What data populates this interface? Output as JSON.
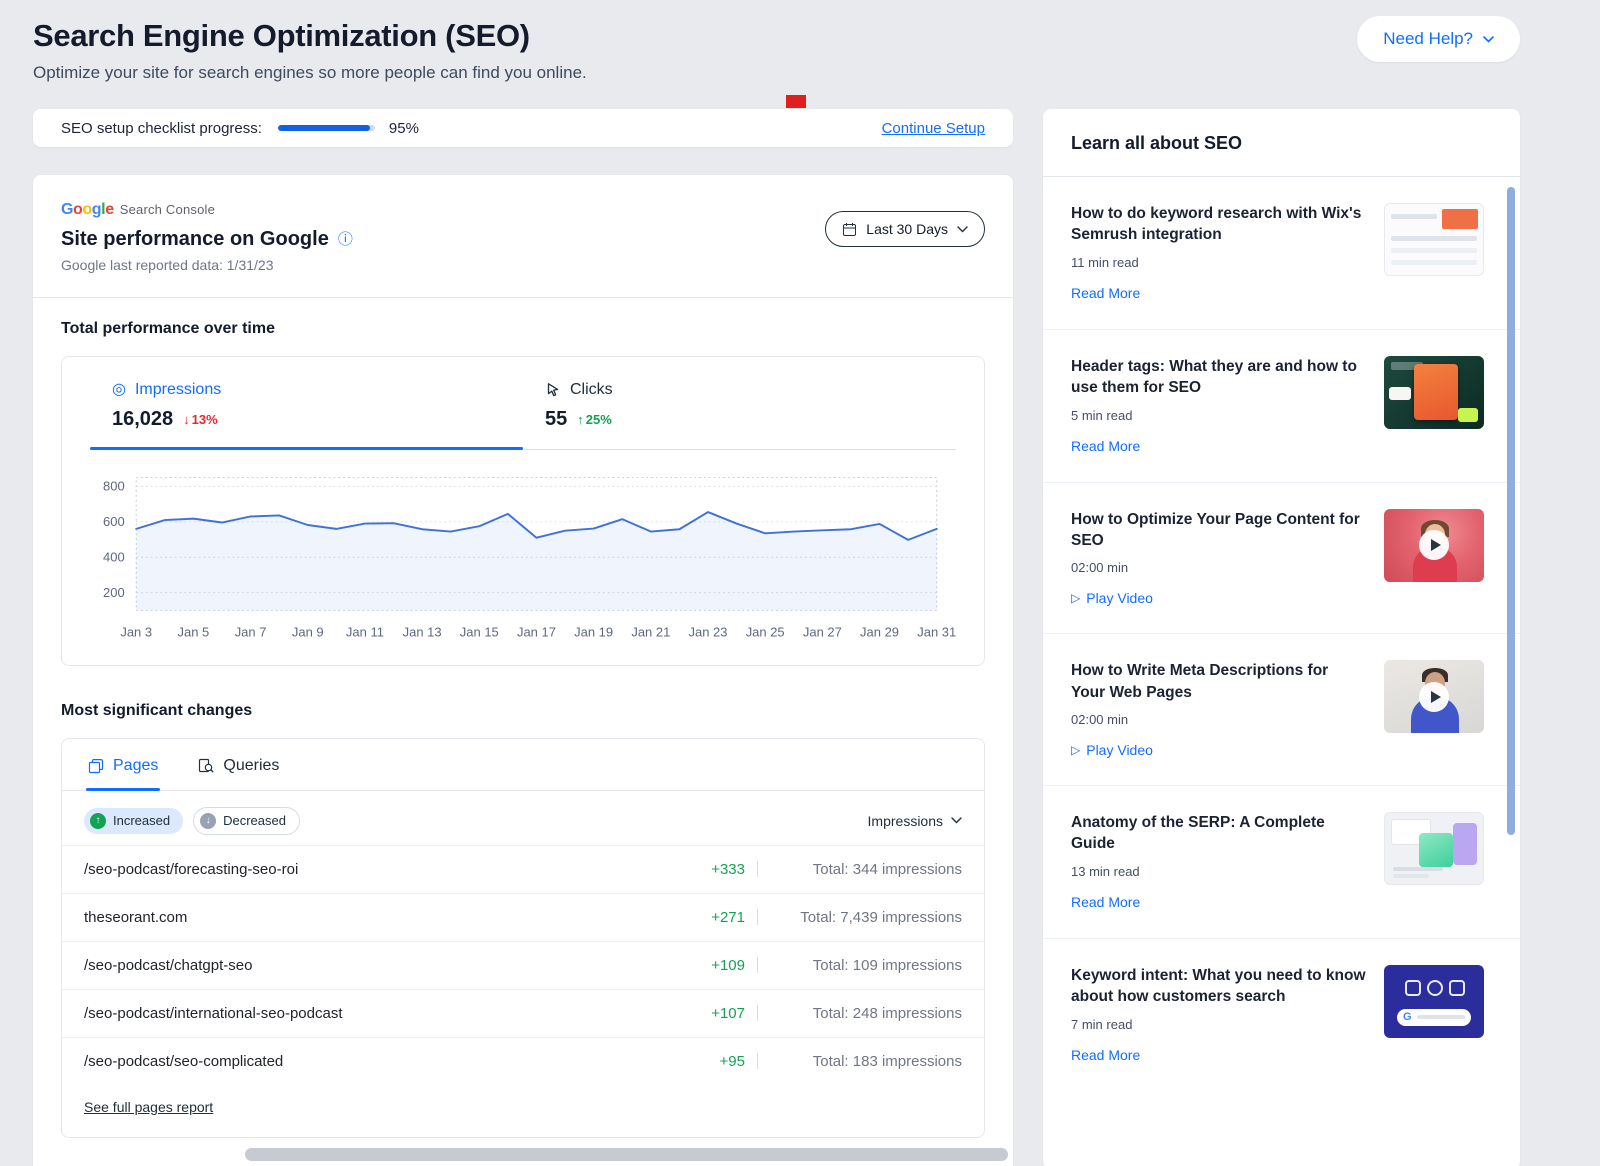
{
  "page": {
    "title": "Search Engine Optimization (SEO)",
    "subtitle": "Optimize your site for search engines so more people can find you online.",
    "help_button": "Need Help?"
  },
  "checklist": {
    "label": "SEO setup checklist progress:",
    "percent": "95%",
    "progress_value": 95,
    "continue_link": "Continue Setup"
  },
  "console": {
    "logo_word": "Google",
    "logo_suffix": "Search Console",
    "title": "Site performance on Google",
    "last_reported": "Google last reported data: 1/31/23",
    "date_range": "Last 30 Days"
  },
  "performance": {
    "heading": "Total performance over time",
    "impressions": {
      "label": "Impressions",
      "value": "16,028",
      "change": "13%",
      "direction": "down"
    },
    "clicks": {
      "label": "Clicks",
      "value": "55",
      "change": "25%",
      "direction": "up"
    }
  },
  "chart_data": {
    "type": "line",
    "title": "Impressions over time (Last 30 Days)",
    "x": [
      "Jan 3",
      "Jan 4",
      "Jan 5",
      "Jan 6",
      "Jan 7",
      "Jan 8",
      "Jan 9",
      "Jan 10",
      "Jan 11",
      "Jan 12",
      "Jan 13",
      "Jan 14",
      "Jan 15",
      "Jan 16",
      "Jan 17",
      "Jan 18",
      "Jan 19",
      "Jan 20",
      "Jan 21",
      "Jan 22",
      "Jan 23",
      "Jan 24",
      "Jan 25",
      "Jan 26",
      "Jan 27",
      "Jan 28",
      "Jan 29",
      "Jan 30",
      "Jan 31"
    ],
    "values": [
      560,
      610,
      618,
      596,
      630,
      636,
      582,
      560,
      590,
      592,
      558,
      545,
      575,
      645,
      510,
      550,
      562,
      615,
      545,
      558,
      655,
      590,
      535,
      545,
      552,
      558,
      588,
      498,
      560
    ],
    "x_tick_labels": [
      "Jan 3",
      "Jan 5",
      "Jan 7",
      "Jan 9",
      "Jan 11",
      "Jan 13",
      "Jan 15",
      "Jan 17",
      "Jan 19",
      "Jan 21",
      "Jan 23",
      "Jan 25",
      "Jan 27",
      "Jan 29",
      "Jan 31"
    ],
    "y_ticks": [
      200,
      400,
      600,
      800
    ],
    "ylim": [
      100,
      850
    ],
    "grid": true,
    "legend": "none",
    "series_color": "#3f72d8"
  },
  "changes": {
    "heading": "Most significant changes",
    "tabs": {
      "pages": "Pages",
      "queries": "Queries"
    },
    "filters": {
      "increased": "Increased",
      "decreased": "Decreased"
    },
    "sort_label": "Impressions",
    "rows": [
      {
        "page": "/seo-podcast/forecasting-seo-roi",
        "change": "+333",
        "total": "Total: 344 impressions"
      },
      {
        "page": "theseorant.com",
        "change": "+271",
        "total": "Total: 7,439 impressions"
      },
      {
        "page": "/seo-podcast/chatgpt-seo",
        "change": "+109",
        "total": "Total: 109 impressions"
      },
      {
        "page": "/seo-podcast/international-seo-podcast",
        "change": "+107",
        "total": "Total: 248 impressions"
      },
      {
        "page": "/seo-podcast/seo-complicated",
        "change": "+95",
        "total": "Total: 183 impressions"
      }
    ],
    "footer_link": "See full pages report"
  },
  "learn": {
    "heading": "Learn all about SEO",
    "articles": [
      {
        "title": "How to do keyword research with Wix's Semrush integration",
        "meta": "11 min read",
        "action": "Read More",
        "type": "read"
      },
      {
        "title": "Header tags: What they are and how to use them for SEO",
        "meta": "5 min read",
        "action": "Read More",
        "type": "read"
      },
      {
        "title": "How to Optimize Your Page Content for SEO",
        "meta": "02:00 min",
        "action": "Play Video",
        "type": "video"
      },
      {
        "title": "How to Write Meta Descriptions for Your Web Pages",
        "meta": "02:00 min",
        "action": "Play Video",
        "type": "video"
      },
      {
        "title": "Anatomy of the SERP: A Complete Guide",
        "meta": "13 min read",
        "action": "Read More",
        "type": "read"
      },
      {
        "title": "Keyword intent: What you need to know about how customers search",
        "meta": "7 min read",
        "action": "Read More",
        "type": "read"
      }
    ]
  },
  "icons": {
    "chevron_down": "⌄",
    "arrow_down": "↓",
    "arrow_up": "↑",
    "info": "ⓘ",
    "target": "◎",
    "play_small": "▷",
    "google_g": "G"
  },
  "colors": {
    "accent_blue": "#116dff",
    "positive_green": "#12a454",
    "negative_red": "#e02b2b",
    "google_letters": [
      "#4285F4",
      "#EA4335",
      "#FBBC05",
      "#4285F4",
      "#34A853",
      "#EA4335"
    ]
  }
}
